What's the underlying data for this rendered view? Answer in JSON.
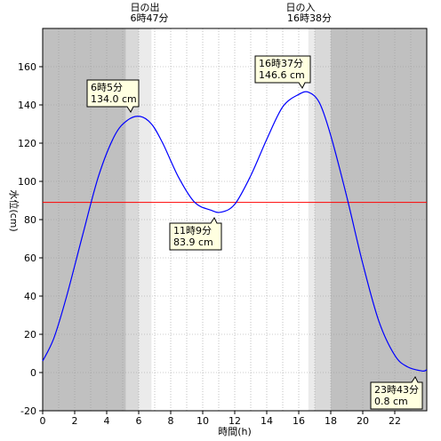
{
  "chart_data": {
    "type": "line",
    "xlabel": "時間(h)",
    "ylabel": "水位(cm)",
    "xlim": [
      0,
      24
    ],
    "ylim": [
      -20,
      180
    ],
    "x_ticks": [
      0,
      2,
      4,
      6,
      8,
      10,
      12,
      14,
      16,
      18,
      20,
      22
    ],
    "y_ticks": [
      -20,
      0,
      20,
      40,
      60,
      80,
      100,
      120,
      140,
      160
    ],
    "reference_line": {
      "value": 89,
      "color": "#ff0000"
    },
    "series": [
      {
        "color": "#0000ff",
        "x": [
          0,
          0.7,
          1.5,
          2.5,
          3.5,
          4.5,
          5.3,
          6.08,
          6.8,
          7.5,
          8.5,
          9.5,
          10.5,
          11.15,
          12.0,
          13.0,
          14.0,
          15.0,
          16.0,
          16.62,
          17.3,
          18.0,
          19.0,
          20.0,
          21.0,
          22.0,
          22.8,
          23.72,
          24.0
        ],
        "y": [
          6,
          18,
          40,
          72,
          103,
          124,
          132,
          134.0,
          130,
          120,
          102,
          89,
          85,
          83.9,
          88,
          103,
          122,
          139,
          145.5,
          146.6,
          141,
          124,
          92,
          57,
          27,
          9,
          3,
          0.8,
          1.5
        ]
      }
    ],
    "sun": {
      "rise_label": "日の出",
      "rise_time": "6時47分",
      "set_label": "日の入",
      "set_time": "16時38分"
    },
    "annotations": [
      {
        "time": "6時5分",
        "value": "134.0 cm",
        "x": 6.08,
        "y": 134.0
      },
      {
        "time": "11時9分",
        "value": "83.9 cm",
        "x": 11.15,
        "y": 83.9
      },
      {
        "time": "16時37分",
        "value": "146.6 cm",
        "x": 16.62,
        "y": 146.6
      },
      {
        "time": "23時43分",
        "value": "0.8 cm",
        "x": 23.72,
        "y": 0.8
      }
    ]
  }
}
